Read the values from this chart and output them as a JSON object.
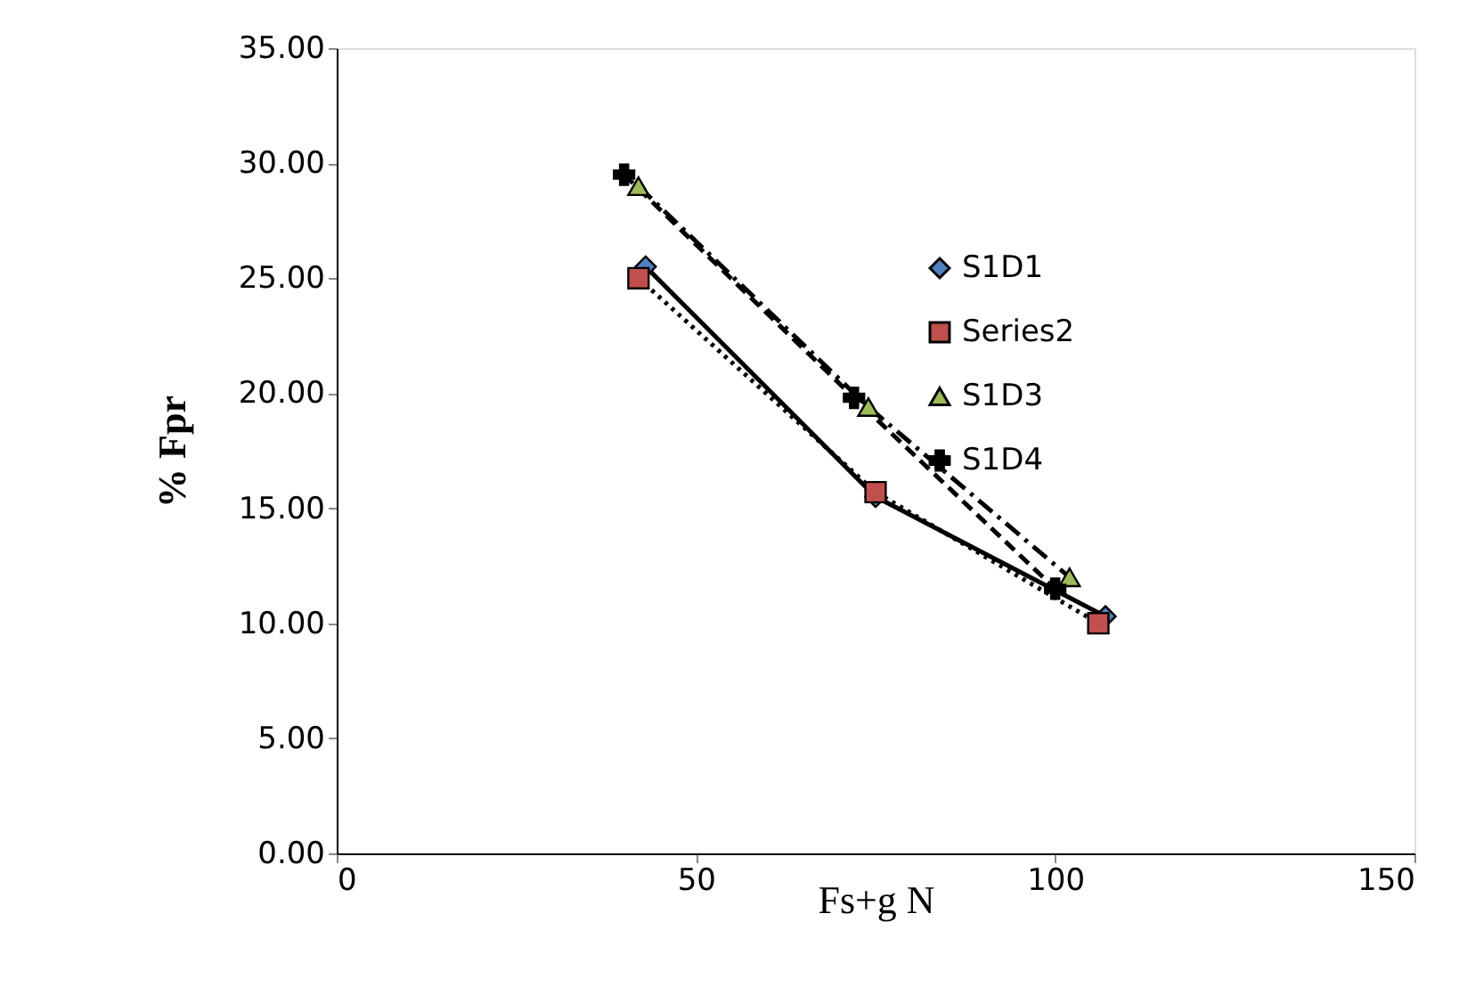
{
  "chart_data": {
    "type": "line",
    "xlabel": "Fs+g N",
    "ylabel": "% Fpr",
    "xlim": [
      0,
      150
    ],
    "xticks": [
      0,
      50,
      100,
      150
    ],
    "ylim": [
      0,
      35
    ],
    "yticks": [
      {
        "value": 0,
        "label": "0.00"
      },
      {
        "value": 5,
        "label": "5.00"
      },
      {
        "value": 10,
        "label": "10.00"
      },
      {
        "value": 15,
        "label": "15.00"
      },
      {
        "value": 20,
        "label": "20.00"
      },
      {
        "value": 25,
        "label": "25.00"
      },
      {
        "value": 30,
        "label": "30.00"
      },
      {
        "value": 35,
        "label": "35.00"
      }
    ],
    "grid": false,
    "legend": "right",
    "series": [
      {
        "name": "S1D1",
        "color": "#4f81bd",
        "marker": "diamond",
        "line_style": "solid",
        "x": [
          43,
          75,
          107
        ],
        "values": [
          25.5,
          15.5,
          10.3
        ]
      },
      {
        "name": "Series2",
        "color": "#c0504d",
        "marker": "square",
        "line_style": "dotted",
        "x": [
          42,
          75,
          106
        ],
        "values": [
          25,
          15.7,
          10
        ]
      },
      {
        "name": "S1D3",
        "color": "#9bbb59",
        "marker": "triangle",
        "line_style": "dashdot",
        "x": [
          42,
          74,
          102
        ],
        "values": [
          29,
          19.4,
          12
        ]
      },
      {
        "name": "S1D4",
        "color": "#000000",
        "marker": "cross",
        "line_style": "dashed",
        "x": [
          40,
          72,
          100
        ],
        "values": [
          29.5,
          19.8,
          11.5
        ]
      }
    ]
  }
}
